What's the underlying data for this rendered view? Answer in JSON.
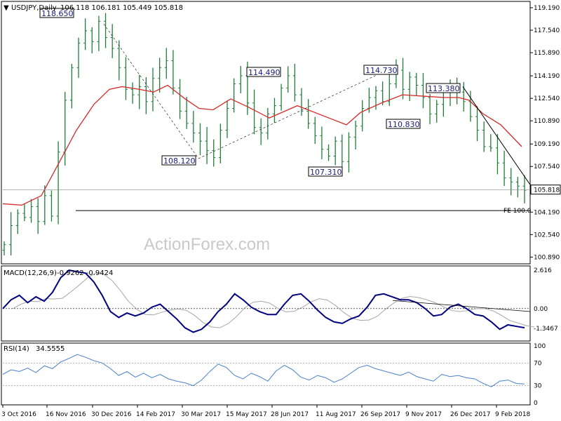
{
  "header": {
    "symbol": "USDJPY,Daily",
    "ohlc": "106.118 106.181 105.449 105.818",
    "macd_label": "MACD(12,26,9)",
    "macd_values": "-0.9262 -0.9424",
    "rsi_label": "RSI(14)",
    "rsi_value": "34.5555"
  },
  "watermark": "ActionForex.com",
  "fe_label": "FE 100.0",
  "colors": {
    "bars": "#1f7f3a",
    "ma": "#d32a2a",
    "macd": "#000080",
    "signal": "#a6a6a6",
    "rsi": "#4a7fc9",
    "labels": "#1a1a80",
    "price_line": "#000000"
  },
  "chart_data": [
    {
      "type": "ohlc",
      "panel": "price",
      "title": "USDJPY,Daily",
      "y_ticks": [
        "119.190",
        "117.540",
        "115.890",
        "114.190",
        "112.540",
        "110.890",
        "109.190",
        "107.540",
        "105.818",
        "104.190",
        "102.540",
        "100.890"
      ],
      "ylim": [
        100.6,
        119.5
      ],
      "current_price": 105.818,
      "fe_level": 104.3,
      "x_ticks": [
        "3 Oct 2016",
        "16 Nov 2016",
        "30 Dec 2016",
        "14 Feb 2017",
        "30 Mar 2017",
        "15 May 2017",
        "28 Jun 2017",
        "11 Aug 2017",
        "26 Sep 2017",
        "9 Nov 2017",
        "26 Dec 2017",
        "9 Feb 2018"
      ],
      "closes": [
        101.8,
        103.2,
        104.1,
        103.8,
        104.6,
        103.5,
        105.4,
        103.9,
        108.6,
        112.4,
        114.8,
        116.6,
        117.5,
        116.7,
        118.2,
        117.0,
        116.2,
        114.8,
        113.2,
        112.8,
        113.4,
        112.3,
        114.0,
        114.8,
        115.3,
        113.3,
        111.6,
        110.7,
        110.0,
        109.4,
        108.7,
        108.2,
        110.2,
        111.8,
        113.6,
        114.2,
        112.2,
        110.4,
        110.0,
        111.4,
        112.0,
        113.3,
        114.2,
        112.8,
        111.6,
        110.7,
        109.8,
        108.8,
        108.3,
        109.4,
        107.9,
        109.7,
        110.5,
        111.8,
        112.6,
        113.1,
        112.3,
        113.6,
        114.6,
        113.2,
        114.1,
        113.5,
        112.6,
        111.4,
        112.1,
        113.0,
        113.2,
        113.0,
        112.3,
        111.2,
        110.2,
        109.0,
        108.9,
        107.8,
        106.7,
        106.4,
        106.1,
        105.8
      ],
      "ma_points": [
        [
          0,
          104.8
        ],
        [
          27,
          104.7
        ],
        [
          55,
          105.4
        ],
        [
          80,
          107.8
        ],
        [
          105,
          110.2
        ],
        [
          130,
          112.1
        ],
        [
          152,
          113.2
        ],
        [
          170,
          113.4
        ],
        [
          195,
          113.2
        ],
        [
          215,
          113.0
        ],
        [
          235,
          113.5
        ],
        [
          260,
          112.5
        ],
        [
          280,
          111.8
        ],
        [
          300,
          111.7
        ],
        [
          325,
          112.5
        ],
        [
          350,
          111.9
        ],
        [
          380,
          111.1
        ],
        [
          420,
          112.0
        ],
        [
          460,
          111.2
        ],
        [
          490,
          110.6
        ],
        [
          510,
          111.5
        ],
        [
          540,
          112.2
        ],
        [
          570,
          112.8
        ],
        [
          600,
          112.7
        ],
        [
          630,
          112.6
        ],
        [
          650,
          112.6
        ],
        [
          665,
          112.4
        ],
        [
          685,
          111.4
        ],
        [
          710,
          110.6
        ],
        [
          740,
          109.0
        ]
      ],
      "annotations": [
        {
          "text": "118.650",
          "value": 118.65
        },
        {
          "text": "108.120",
          "value": 108.12
        },
        {
          "text": "114.490",
          "value": 114.49
        },
        {
          "text": "107.310",
          "value": 107.31
        },
        {
          "text": "114.730",
          "value": 114.73
        },
        {
          "text": "110.830",
          "value": 110.83
        },
        {
          "text": "113.380",
          "value": 113.38
        }
      ]
    },
    {
      "type": "line",
      "panel": "macd",
      "title": "MACD(12,26,9)",
      "y_ticks": [
        "2.616",
        "0.00",
        "-1.3467"
      ],
      "ylim": [
        -2.1,
        2.7
      ],
      "series": [
        {
          "values": [
            0.0,
            0.6,
            0.9,
            0.4,
            0.8,
            0.5,
            1.1,
            2.1,
            2.6,
            2.5,
            2.4,
            1.8,
            0.9,
            -0.2,
            -0.6,
            -0.3,
            -0.5,
            -0.3,
            0.1,
            0.3,
            -0.2,
            -0.7,
            -1.3,
            -1.6,
            -1.4,
            -0.9,
            -0.2,
            0.3,
            1.0,
            0.6,
            0.1,
            -0.2,
            -0.4,
            -0.4,
            0.3,
            0.9,
            1.0,
            0.5,
            -0.1,
            -0.6,
            -0.9,
            -1.0,
            -0.7,
            -0.5,
            0.1,
            0.9,
            1.0,
            0.8,
            0.6,
            0.6,
            0.4,
            0.0,
            -0.5,
            -0.4,
            0.1,
            0.3,
            0.0,
            -0.4,
            -0.5,
            -0.9,
            -1.4,
            -1.1,
            -1.2,
            -1.3
          ]
        }
      ]
    },
    {
      "type": "line",
      "panel": "rsi",
      "title": "RSI(14)",
      "y_ticks": [
        "100",
        "70",
        "30",
        "0"
      ],
      "ylim": [
        0,
        100
      ],
      "series": [
        {
          "values": [
            50,
            58,
            55,
            61,
            53,
            65,
            60,
            72,
            78,
            85,
            80,
            74,
            70,
            60,
            48,
            55,
            45,
            52,
            44,
            50,
            42,
            38,
            35,
            30,
            40,
            55,
            68,
            62,
            48,
            42,
            52,
            46,
            38,
            56,
            66,
            58,
            45,
            40,
            48,
            44,
            36,
            42,
            52,
            62,
            66,
            60,
            56,
            52,
            48,
            54,
            46,
            42,
            38,
            50,
            46,
            48,
            44,
            42,
            34,
            28,
            38,
            40,
            34,
            33
          ]
        }
      ]
    }
  ]
}
